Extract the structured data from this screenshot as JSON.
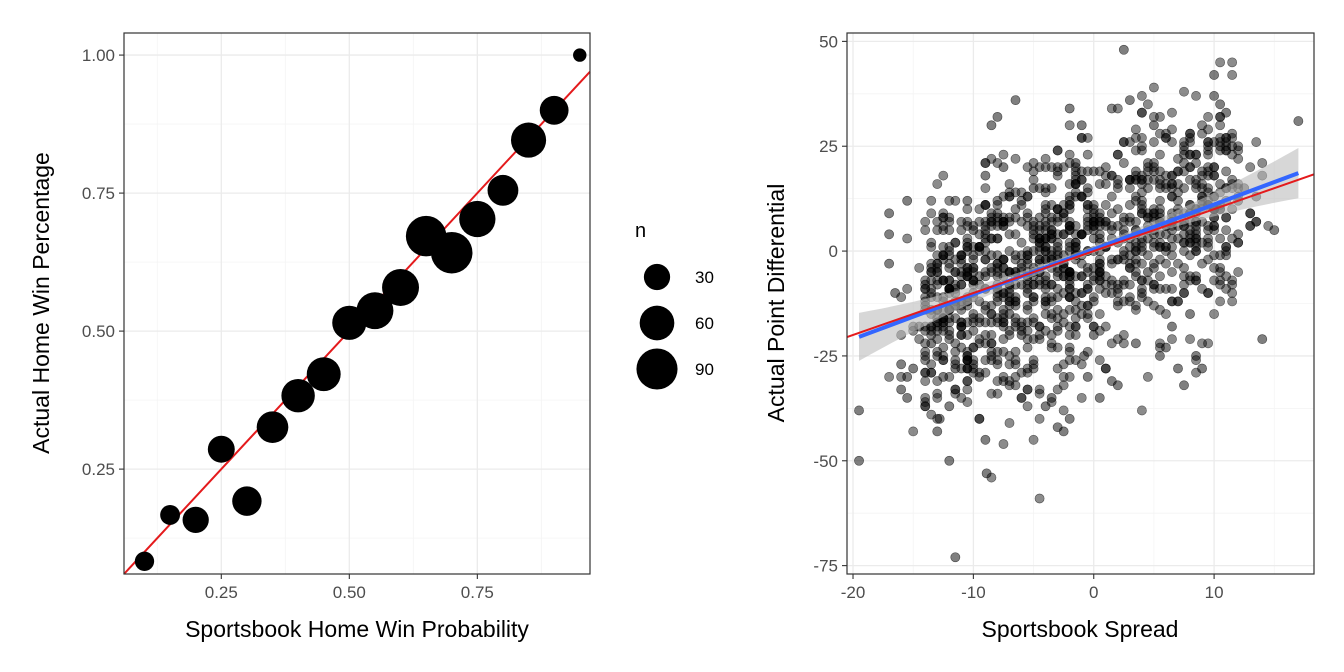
{
  "colors": {
    "grid_major": "#ebebeb",
    "grid_minor": "#f4f4f4",
    "panel_border": "#333333",
    "tick_text": "#4d4d4d",
    "point": "#000000",
    "ref_line": "#e41a1c",
    "fit_line": "#3366ff",
    "ci_band": "#bdbdbd"
  },
  "chart_data": [
    {
      "type": "scatter",
      "xlabel": "Sportsbook Home Win Probability",
      "ylabel": "Actual Home Win Percentage",
      "xlim": [
        0.06,
        0.97
      ],
      "ylim": [
        0.06,
        1.04
      ],
      "xticks": [
        0.25,
        0.5,
        0.75
      ],
      "xtick_labels": [
        "0.25",
        "0.50",
        "0.75"
      ],
      "yticks": [
        0.25,
        0.5,
        0.75,
        1.0
      ],
      "ytick_labels": [
        "0.25",
        "0.50",
        "0.75",
        "1.00"
      ],
      "grid": true,
      "size_legend": {
        "title": "n",
        "position": "right",
        "entries": [
          {
            "label": "30",
            "value": 30
          },
          {
            "label": "60",
            "value": 60
          },
          {
            "label": "90",
            "value": 90
          }
        ]
      },
      "points": [
        {
          "x": 0.1,
          "y": 0.083,
          "n": 13
        },
        {
          "x": 0.15,
          "y": 0.167,
          "n": 14
        },
        {
          "x": 0.2,
          "y": 0.158,
          "n": 30
        },
        {
          "x": 0.25,
          "y": 0.286,
          "n": 32
        },
        {
          "x": 0.3,
          "y": 0.192,
          "n": 40
        },
        {
          "x": 0.35,
          "y": 0.326,
          "n": 48
        },
        {
          "x": 0.4,
          "y": 0.383,
          "n": 55
        },
        {
          "x": 0.45,
          "y": 0.422,
          "n": 57
        },
        {
          "x": 0.5,
          "y": 0.515,
          "n": 58
        },
        {
          "x": 0.55,
          "y": 0.537,
          "n": 70
        },
        {
          "x": 0.6,
          "y": 0.579,
          "n": 70
        },
        {
          "x": 0.65,
          "y": 0.672,
          "n": 87
        },
        {
          "x": 0.7,
          "y": 0.642,
          "n": 92
        },
        {
          "x": 0.75,
          "y": 0.703,
          "n": 67
        },
        {
          "x": 0.8,
          "y": 0.755,
          "n": 45
        },
        {
          "x": 0.85,
          "y": 0.846,
          "n": 62
        },
        {
          "x": 0.9,
          "y": 0.9,
          "n": 38
        },
        {
          "x": 0.95,
          "y": 1.0,
          "n": 4
        }
      ],
      "reference_line": {
        "slope": 1,
        "intercept": 0
      }
    },
    {
      "type": "scatter",
      "xlabel": "Sportsbook Spread",
      "ylabel": "Actual Point Differential",
      "xlim": [
        -20.5,
        18.3
      ],
      "ylim": [
        -77,
        52
      ],
      "xticks": [
        -20,
        -10,
        0,
        10
      ],
      "xtick_labels": [
        "-20",
        "-10",
        "0",
        "10"
      ],
      "yticks": [
        -75,
        -50,
        -25,
        0,
        25,
        50
      ],
      "ytick_labels": [
        "-75",
        "-50",
        "-25",
        "0",
        "25",
        "50"
      ],
      "grid": true,
      "reference_line": {
        "slope": 1,
        "intercept": 0
      },
      "fit_line": {
        "x_range": [
          -19.5,
          17
        ],
        "slope": 1.07,
        "intercept": 0.4
      },
      "ci_halfwidth_at_ends": 6,
      "points_note": "approx. 1300 games",
      "points": [
        [
          -19.5,
          -38
        ],
        [
          -19.5,
          -50
        ],
        [
          -11.5,
          -73
        ],
        [
          -8.9,
          -53
        ],
        [
          -17,
          9
        ],
        [
          -17,
          4
        ],
        [
          -15.5,
          12
        ],
        [
          -17,
          -3
        ],
        [
          -16.5,
          -10
        ],
        [
          -16,
          -20
        ],
        [
          -16,
          -27
        ],
        [
          -16,
          -33
        ],
        [
          -15.5,
          -30
        ],
        [
          -15.5,
          -35
        ],
        [
          -15,
          -28
        ],
        [
          -14.5,
          -18
        ],
        [
          -14,
          -13
        ],
        [
          -14,
          -8
        ],
        [
          -13.5,
          -5
        ],
        [
          -13.5,
          -22
        ],
        [
          -13,
          -25
        ],
        [
          -13,
          -43
        ],
        [
          -12.8,
          -40
        ],
        [
          -12.5,
          -30
        ],
        [
          -12,
          -50
        ],
        [
          -12,
          -37
        ],
        [
          -11.5,
          -28
        ],
        [
          -11,
          -20
        ],
        [
          -11,
          -5
        ],
        [
          -10.5,
          12
        ],
        [
          -10,
          5
        ],
        [
          -10,
          -10
        ],
        [
          -9.5,
          -30
        ],
        [
          -9.5,
          -40
        ],
        [
          -9,
          -45
        ],
        [
          -9,
          18
        ],
        [
          -8.5,
          30
        ],
        [
          -8,
          32
        ],
        [
          -7.5,
          20
        ],
        [
          -7,
          -15
        ],
        [
          -6.5,
          36
        ],
        [
          -6,
          -20
        ],
        [
          -5.5,
          -10
        ],
        [
          -5,
          15
        ],
        [
          -4.5,
          -18
        ],
        [
          -4,
          -37
        ],
        [
          -3.5,
          -35
        ],
        [
          -3,
          -42
        ],
        [
          -2.5,
          -43
        ],
        [
          -2,
          -40
        ],
        [
          -2,
          34
        ],
        [
          -1.5,
          21
        ],
        [
          -1,
          30
        ],
        [
          -0.8,
          -25
        ],
        [
          -0.5,
          -30
        ],
        [
          0,
          -20
        ],
        [
          0.5,
          -35
        ],
        [
          1,
          -28
        ],
        [
          1.5,
          -31
        ],
        [
          2,
          -32
        ],
        [
          2.5,
          48
        ],
        [
          3,
          36
        ],
        [
          3.5,
          -22
        ],
        [
          4,
          -10
        ],
        [
          4.5,
          -5
        ],
        [
          5,
          30
        ],
        [
          5.5,
          -25
        ],
        [
          6,
          -23
        ],
        [
          6.5,
          -18
        ],
        [
          7,
          -28
        ],
        [
          7.5,
          -32
        ],
        [
          8,
          -15
        ],
        [
          8.5,
          -25
        ],
        [
          9,
          -28
        ],
        [
          9.5,
          -10
        ],
        [
          10,
          37
        ],
        [
          10,
          42
        ],
        [
          10.5,
          35
        ],
        [
          11,
          33
        ],
        [
          11.5,
          25
        ],
        [
          12,
          12
        ],
        [
          12.5,
          15
        ],
        [
          13,
          9
        ],
        [
          13.5,
          13
        ],
        [
          14,
          18
        ],
        [
          14,
          -21
        ],
        [
          15,
          5
        ],
        [
          17,
          31
        ]
      ]
    }
  ]
}
